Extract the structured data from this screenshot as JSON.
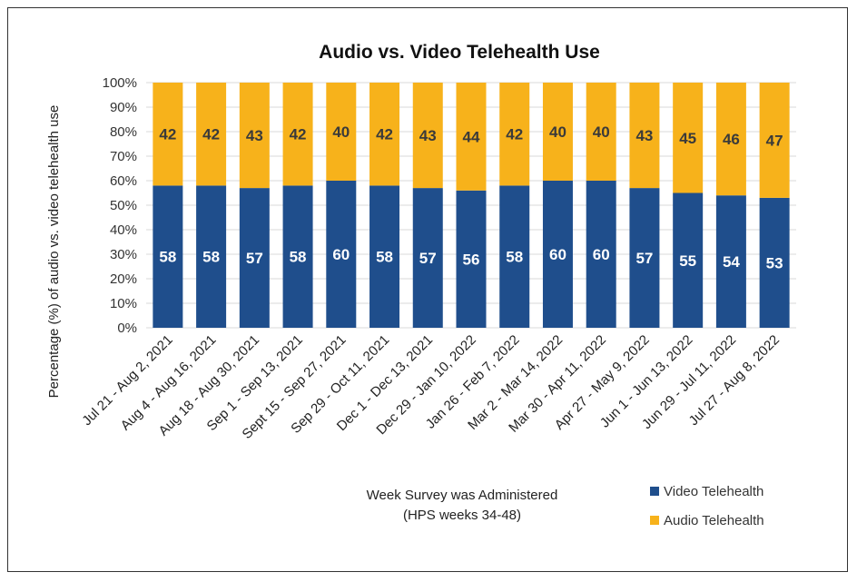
{
  "chart_data": {
    "type": "bar",
    "stacked": true,
    "title": "Audio vs. Video Telehealth Use",
    "xlabel_line1": "Week Survey was Administered",
    "xlabel_line2": "(HPS weeks 34-48)",
    "ylabel": "Percentage (%) of audio vs. video telehealth use",
    "ylim": [
      0,
      100
    ],
    "yticks": [
      "0%",
      "10%",
      "20%",
      "30%",
      "40%",
      "50%",
      "60%",
      "70%",
      "80%",
      "90%",
      "100%"
    ],
    "categories": [
      "Jul 21 - Aug 2, 2021",
      "Aug 4 - Aug 16, 2021",
      "Aug 18 - Aug 30, 2021",
      "Sep 1 - Sep 13, 2021",
      "Sept 15 - Sep 27, 2021",
      "Sep 29 - Oct 11, 2021",
      "Dec 1 - Dec 13, 2021",
      "Dec 29 - Jan 10, 2022",
      "Jan 26 - Feb 7, 2022",
      "Mar 2 - Mar 14, 2022",
      "Mar 30 - Apr 11, 2022",
      "Apr 27 - May 9, 2022",
      "Jun 1 - Jun 13, 2022",
      "Jun 29 - Jul 11, 2022",
      "Jul 27 - Aug 8, 2022"
    ],
    "series": [
      {
        "name": "Video Telehealth",
        "color": "#1f4e8c",
        "values": [
          58,
          58,
          57,
          58,
          60,
          58,
          57,
          56,
          58,
          60,
          60,
          57,
          55,
          54,
          53
        ]
      },
      {
        "name": "Audio Telehealth",
        "color": "#f7b21b",
        "values": [
          42,
          42,
          43,
          42,
          40,
          42,
          43,
          44,
          42,
          40,
          40,
          43,
          45,
          46,
          47
        ]
      }
    ],
    "legend_position": "bottom-right"
  }
}
